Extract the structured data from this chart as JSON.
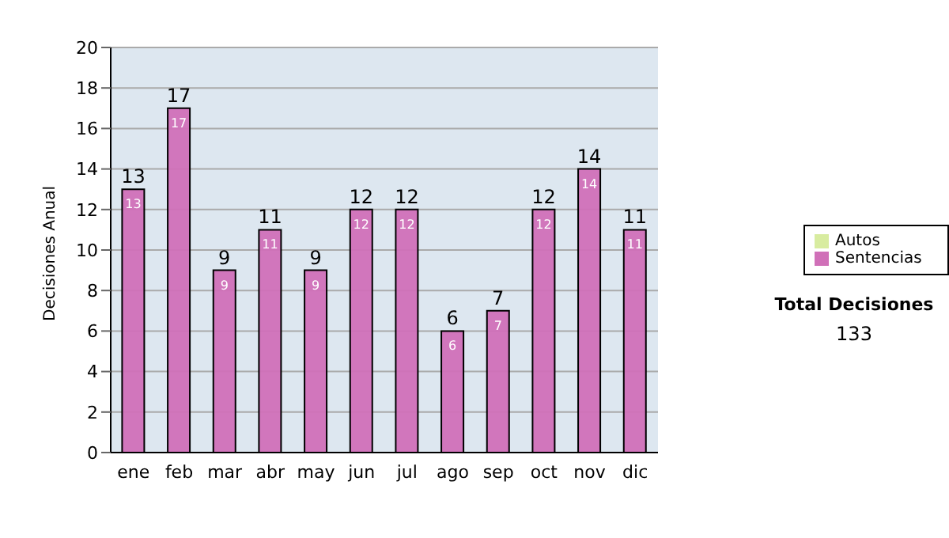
{
  "chart_data": {
    "type": "bar",
    "ylabel": "Decisiones Anual",
    "categories": [
      "ene",
      "feb",
      "mar",
      "abr",
      "may",
      "jun",
      "jul",
      "ago",
      "sep",
      "oct",
      "nov",
      "dic"
    ],
    "series": [
      {
        "name": "Sentencias",
        "color": "#d070b8",
        "values": [
          13,
          17,
          9,
          11,
          9,
          12,
          12,
          6,
          7,
          12,
          14,
          11
        ],
        "value_labels": [
          "13",
          "17",
          "9",
          "11",
          "9",
          "12",
          "12",
          "6",
          "7",
          "12",
          "14",
          "11"
        ]
      },
      {
        "name": "Autos",
        "color": "#d8eca0",
        "values": [
          0,
          0,
          0,
          0,
          0,
          0,
          0,
          0,
          0,
          0,
          0,
          0
        ]
      }
    ],
    "stacked": true,
    "totals": [
      "13",
      "17",
      "9",
      "11",
      "9",
      "12",
      "12",
      "6",
      "7",
      "12",
      "14",
      "11"
    ],
    "ylim": [
      0,
      20
    ],
    "yticks": [
      0,
      2,
      4,
      6,
      8,
      10,
      12,
      14,
      16,
      18,
      20
    ],
    "grid": "y",
    "legend": "right",
    "annotations": [
      "Total Decisiones",
      "133"
    ]
  }
}
